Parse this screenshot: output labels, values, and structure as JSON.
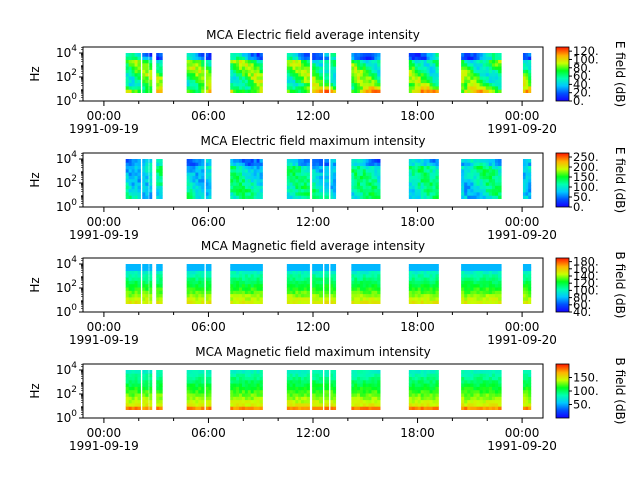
{
  "chart_data": [
    {
      "type": "heatmap",
      "title": "MCA  Electric field average intensity",
      "ylabel": "Hz",
      "colorbar_label": "E field (dB)",
      "colorbar_range": [
        0,
        130
      ],
      "colorbar_ticks": [
        "0.",
        "20.",
        "40.",
        "60.",
        "80.",
        "100.",
        "120."
      ],
      "y_ticks": [
        {
          "base": "10",
          "exp": "0"
        },
        {
          "base": "10",
          "exp": "2"
        },
        {
          "base": "10",
          "exp": "4"
        }
      ],
      "x_ticks": [
        {
          "time": "00:00",
          "date": "1991-09-19"
        },
        {
          "time": "06:00",
          "date": ""
        },
        {
          "time": "12:00",
          "date": ""
        },
        {
          "time": "18:00",
          "date": ""
        },
        {
          "time": "00:00",
          "date": "1991-09-20"
        }
      ],
      "profile": "e_avg"
    },
    {
      "type": "heatmap",
      "title": "MCA  Electric field maximum intensity",
      "ylabel": "Hz",
      "colorbar_label": "E field (dB)",
      "colorbar_range": [
        0,
        270
      ],
      "colorbar_ticks": [
        "0.",
        "50.",
        "100.",
        "150.",
        "200.",
        "250."
      ],
      "y_ticks": [
        {
          "base": "10",
          "exp": "0"
        },
        {
          "base": "10",
          "exp": "2"
        },
        {
          "base": "10",
          "exp": "4"
        }
      ],
      "x_ticks": [
        {
          "time": "00:00",
          "date": "1991-09-19"
        },
        {
          "time": "06:00",
          "date": ""
        },
        {
          "time": "12:00",
          "date": ""
        },
        {
          "time": "18:00",
          "date": ""
        },
        {
          "time": "00:00",
          "date": "1991-09-20"
        }
      ],
      "profile": "e_max"
    },
    {
      "type": "heatmap",
      "title": "MCA  Magnetic field average intensity",
      "ylabel": "Hz",
      "colorbar_label": "B field (dB)",
      "colorbar_range": [
        40,
        190
      ],
      "colorbar_ticks": [
        "40.",
        "60.",
        "80.",
        "100.",
        "120.",
        "140.",
        "160.",
        "180."
      ],
      "y_ticks": [
        {
          "base": "10",
          "exp": "0"
        },
        {
          "base": "10",
          "exp": "2"
        },
        {
          "base": "10",
          "exp": "4"
        }
      ],
      "x_ticks": [
        {
          "time": "00:00",
          "date": "1991-09-19"
        },
        {
          "time": "06:00",
          "date": ""
        },
        {
          "time": "12:00",
          "date": ""
        },
        {
          "time": "18:00",
          "date": ""
        },
        {
          "time": "00:00",
          "date": "1991-09-20"
        }
      ],
      "profile": "b_avg"
    },
    {
      "type": "heatmap",
      "title": "MCA  Magnetic field maximum intensity",
      "ylabel": "Hz",
      "colorbar_label": "B field (dB)",
      "colorbar_range": [
        0,
        200
      ],
      "colorbar_ticks": [
        "50.",
        "100.",
        "150."
      ],
      "y_ticks": [
        {
          "base": "10",
          "exp": "0"
        },
        {
          "base": "10",
          "exp": "2"
        },
        {
          "base": "10",
          "exp": "4"
        }
      ],
      "x_ticks": [
        {
          "time": "00:00",
          "date": "1991-09-19"
        },
        {
          "time": "06:00",
          "date": ""
        },
        {
          "time": "12:00",
          "date": ""
        },
        {
          "time": "18:00",
          "date": ""
        },
        {
          "time": "00:00",
          "date": "1991-09-20"
        }
      ],
      "profile": "b_max"
    }
  ],
  "x_range_hours": [
    -1.2,
    25.2
  ],
  "y_log_range": [
    0,
    4.5
  ],
  "data_log_range": [
    0.7,
    4.0
  ],
  "data_segments_hours": [
    [
      1.25,
      2.1
    ],
    [
      2.2,
      2.55
    ],
    [
      2.6,
      2.75
    ],
    [
      3.0,
      3.35
    ],
    [
      4.75,
      5.75
    ],
    [
      5.85,
      6.15
    ],
    [
      7.25,
      9.1
    ],
    [
      10.5,
      11.8
    ],
    [
      11.95,
      12.55
    ],
    [
      12.65,
      12.9
    ],
    [
      13.0,
      13.3
    ],
    [
      14.2,
      15.85
    ],
    [
      17.5,
      19.2
    ],
    [
      20.5,
      22.8
    ],
    [
      24.05,
      24.5
    ]
  ]
}
